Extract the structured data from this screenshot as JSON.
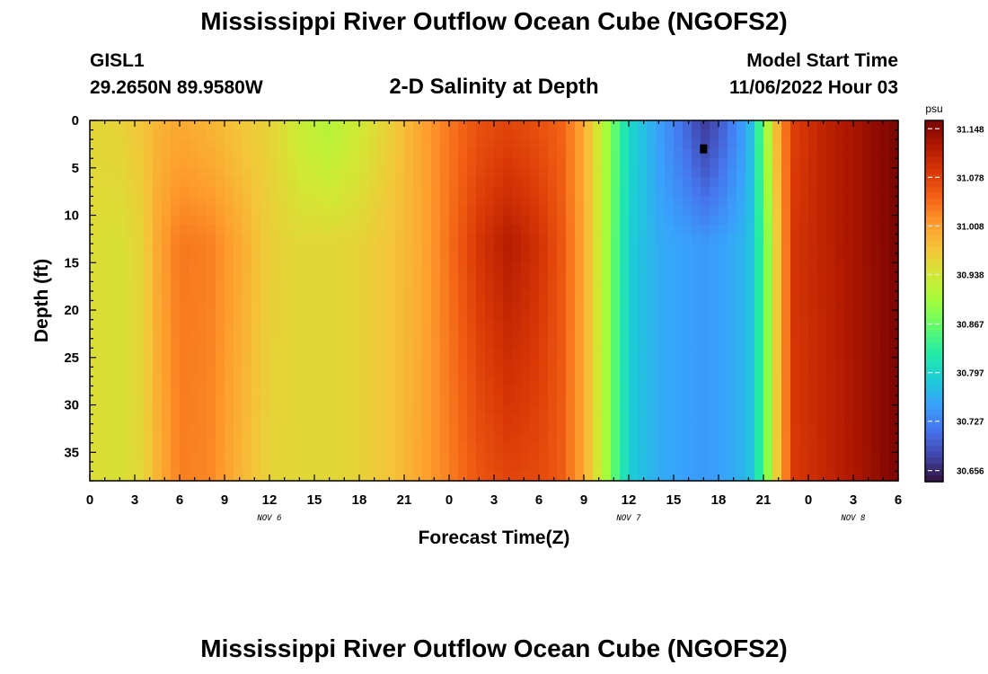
{
  "header": {
    "title": "Mississippi River Outflow Ocean Cube (NGOFS2)",
    "station_id": "GISL1",
    "station_coords": "29.2650N  89.9580W",
    "plot_title": "2-D Salinity at Depth",
    "start_label": "Model Start Time",
    "start_value": "11/06/2022 Hour 03"
  },
  "footer": {
    "title": "Mississippi River Outflow Ocean Cube (NGOFS2)"
  },
  "chart_data": {
    "type": "heatmap",
    "title": "2-D Salinity at Depth",
    "xlabel": "Forecast Time(Z)",
    "ylabel": "Depth (ft)",
    "x_unit": "hours since 11/06/2022 00Z",
    "x_range": [
      0,
      54
    ],
    "y_range": [
      0,
      38
    ],
    "y_inverted": true,
    "x_ticks": [
      0,
      3,
      6,
      9,
      12,
      15,
      18,
      21,
      24,
      27,
      30,
      33,
      36,
      39,
      42,
      45,
      48,
      51,
      54
    ],
    "x_tick_labels": [
      "0",
      "3",
      "6",
      "9",
      "12",
      "15",
      "18",
      "21",
      "0",
      "3",
      "6",
      "9",
      "12",
      "15",
      "18",
      "21",
      "0",
      "3",
      "6"
    ],
    "y_ticks": [
      0,
      5,
      10,
      15,
      20,
      25,
      30,
      35
    ],
    "y_tick_labels": [
      "0",
      "5",
      "10",
      "15",
      "20",
      "25",
      "30",
      "35"
    ],
    "date_labels": [
      {
        "x": 12,
        "text": "NOV 6"
      },
      {
        "x": 36,
        "text": "NOV 7"
      },
      {
        "x": 51,
        "text": "NOV 8"
      }
    ],
    "colorbar": {
      "unit": "psu",
      "min": 30.64,
      "max": 31.16,
      "ticks": [
        "31.148",
        "31.078",
        "31.008",
        "30.938",
        "30.867",
        "30.797",
        "30.727",
        "30.656"
      ],
      "colormap": [
        "#30123b",
        "#4145ab",
        "#4675ed",
        "#39a2fc",
        "#1bcfd4",
        "#24eca6",
        "#61fc6c",
        "#a4fc3b",
        "#d1e834",
        "#f3c63a",
        "#fe9b2d",
        "#f36315",
        "#d93806",
        "#b11901",
        "#7a0402"
      ]
    },
    "profiles": [
      {
        "t": 0,
        "top": 30.955,
        "mid": 30.95,
        "bot": 30.95
      },
      {
        "t": 2,
        "top": 30.96,
        "mid": 30.945,
        "bot": 30.945
      },
      {
        "t": 3.5,
        "top": 30.975,
        "mid": 30.96,
        "bot": 30.955
      },
      {
        "t": 4.5,
        "top": 30.99,
        "mid": 31.0,
        "bot": 30.99
      },
      {
        "t": 6,
        "top": 31.0,
        "mid": 31.035,
        "bot": 31.03
      },
      {
        "t": 8,
        "top": 30.99,
        "mid": 31.03,
        "bot": 31.025
      },
      {
        "t": 10,
        "top": 30.975,
        "mid": 31.0,
        "bot": 30.99
      },
      {
        "t": 12,
        "top": 30.96,
        "mid": 30.965,
        "bot": 30.96
      },
      {
        "t": 14,
        "top": 30.93,
        "mid": 30.955,
        "bot": 30.955
      },
      {
        "t": 16,
        "top": 30.915,
        "mid": 30.955,
        "bot": 30.955
      },
      {
        "t": 18,
        "top": 30.935,
        "mid": 30.96,
        "bot": 30.96
      },
      {
        "t": 20,
        "top": 30.965,
        "mid": 30.975,
        "bot": 30.975
      },
      {
        "t": 22,
        "top": 31.0,
        "mid": 30.995,
        "bot": 31.0
      },
      {
        "t": 24,
        "top": 31.035,
        "mid": 31.04,
        "bot": 31.03
      },
      {
        "t": 26,
        "top": 31.065,
        "mid": 31.09,
        "bot": 31.06
      },
      {
        "t": 28,
        "top": 31.075,
        "mid": 31.12,
        "bot": 31.075
      },
      {
        "t": 30,
        "top": 31.065,
        "mid": 31.095,
        "bot": 31.07
      },
      {
        "t": 31.5,
        "top": 31.05,
        "mid": 31.06,
        "bot": 31.055
      },
      {
        "t": 33,
        "top": 31.0,
        "mid": 31.0,
        "bot": 31.0
      },
      {
        "t": 34.5,
        "top": 30.9,
        "mid": 30.9,
        "bot": 30.9
      },
      {
        "t": 36,
        "top": 30.8,
        "mid": 30.79,
        "bot": 30.79
      },
      {
        "t": 38,
        "top": 30.75,
        "mid": 30.76,
        "bot": 30.76
      },
      {
        "t": 40,
        "top": 30.7,
        "mid": 30.75,
        "bot": 30.75
      },
      {
        "t": 41,
        "top": 30.67,
        "mid": 30.745,
        "bot": 30.745
      },
      {
        "t": 42,
        "top": 30.69,
        "mid": 30.75,
        "bot": 30.75
      },
      {
        "t": 44,
        "top": 30.76,
        "mid": 30.77,
        "bot": 30.77
      },
      {
        "t": 45,
        "top": 30.87,
        "mid": 30.85,
        "bot": 30.85
      },
      {
        "t": 46,
        "top": 31.0,
        "mid": 30.98,
        "bot": 30.98
      },
      {
        "t": 47,
        "top": 31.08,
        "mid": 31.09,
        "bot": 31.085
      },
      {
        "t": 49,
        "top": 31.11,
        "mid": 31.11,
        "bot": 31.105
      },
      {
        "t": 51,
        "top": 31.13,
        "mid": 31.13,
        "bot": 31.125
      },
      {
        "t": 54,
        "top": 31.16,
        "mid": 31.16,
        "bot": 31.16
      }
    ],
    "marker": {
      "x": 41,
      "y": 3
    }
  }
}
